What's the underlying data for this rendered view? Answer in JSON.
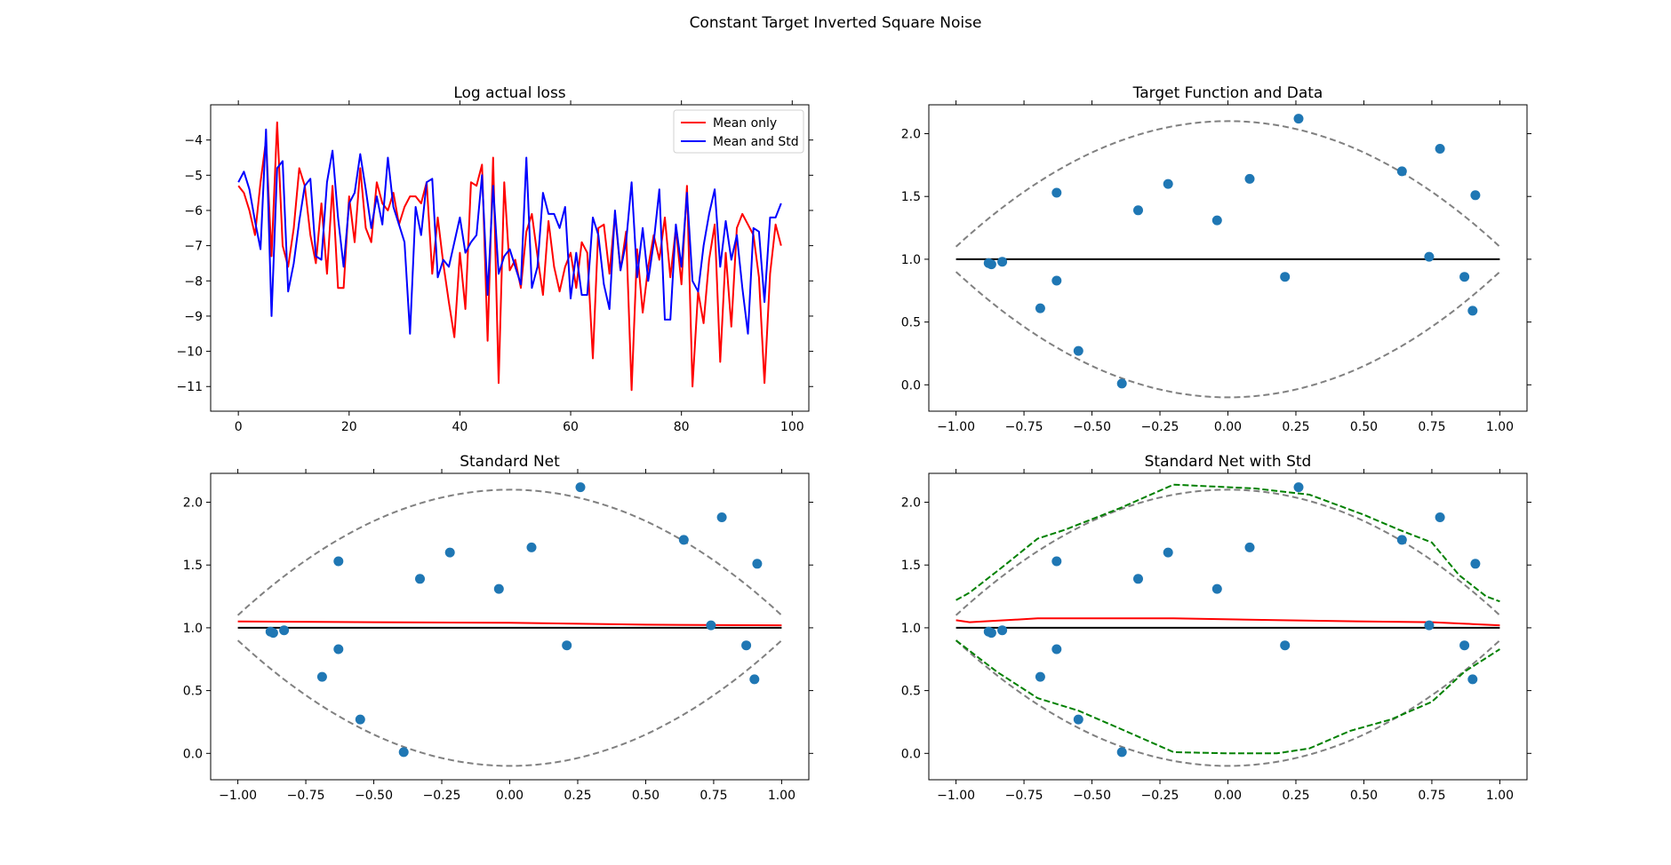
{
  "figure": {
    "suptitle": "Constant Target Inverted Square Noise"
  },
  "colors": {
    "red": "#ff0000",
    "blue": "#0000ff",
    "black": "#000000",
    "gray_dashed": "#808080",
    "green_dashed": "#008000",
    "points": "#1f77b4"
  },
  "chart_data": [
    {
      "id": "loss",
      "type": "line",
      "title": "Log actual loss",
      "xlabel": "",
      "ylabel": "",
      "xlim": [
        -5,
        103
      ],
      "ylim": [
        -11.7,
        -3.0
      ],
      "xticks": [
        0,
        20,
        40,
        60,
        80,
        100
      ],
      "xtick_labels": [
        "0",
        "20",
        "40",
        "60",
        "80",
        "100"
      ],
      "yticks": [
        -4,
        -5,
        -6,
        -7,
        -8,
        -9,
        -10,
        -11
      ],
      "ytick_labels": [
        "−4",
        "−5",
        "−6",
        "−7",
        "−8",
        "−9",
        "−10",
        "−11"
      ],
      "legend": {
        "position": "upper right",
        "entries": [
          "Mean only",
          "Mean and Std"
        ]
      },
      "series": [
        {
          "name": "Mean only",
          "color": "#ff0000",
          "x_start": 0,
          "values": [
            -5.3,
            -5.5,
            -6.0,
            -6.7,
            -5.2,
            -4.0,
            -7.3,
            -3.5,
            -7.0,
            -7.6,
            -6.5,
            -4.8,
            -5.3,
            -6.7,
            -7.5,
            -5.8,
            -7.8,
            -5.3,
            -8.2,
            -8.2,
            -5.6,
            -6.9,
            -4.8,
            -6.5,
            -6.9,
            -5.2,
            -5.8,
            -6.0,
            -5.5,
            -6.4,
            -5.9,
            -5.6,
            -5.6,
            -5.8,
            -5.2,
            -7.8,
            -6.2,
            -7.5,
            -8.6,
            -9.6,
            -7.2,
            -8.8,
            -5.2,
            -5.3,
            -4.7,
            -9.7,
            -4.5,
            -10.9,
            -5.2,
            -7.7,
            -7.4,
            -8.2,
            -6.6,
            -6.1,
            -7.3,
            -8.4,
            -6.3,
            -7.6,
            -8.3,
            -7.6,
            -7.2,
            -8.2,
            -6.9,
            -7.2,
            -10.2,
            -6.5,
            -6.4,
            -7.8,
            -6.1,
            -7.7,
            -6.6,
            -11.1,
            -7.1,
            -8.9,
            -7.6,
            -6.7,
            -7.4,
            -6.2,
            -7.9,
            -6.5,
            -8.1,
            -5.3,
            -11.0,
            -8.3,
            -9.2,
            -7.4,
            -6.4,
            -10.3,
            -7.2,
            -9.3,
            -6.5,
            -6.1,
            -6.4,
            -6.7,
            -7.9,
            -10.9,
            -7.8,
            -6.4,
            -7.0
          ]
        },
        {
          "name": "Mean and Std",
          "color": "#0000ff",
          "x_start": 0,
          "values": [
            -5.2,
            -4.9,
            -5.4,
            -6.3,
            -7.1,
            -3.7,
            -9.0,
            -4.8,
            -4.6,
            -8.3,
            -7.5,
            -6.3,
            -5.3,
            -5.1,
            -7.3,
            -7.4,
            -5.2,
            -4.3,
            -6.2,
            -7.6,
            -5.8,
            -5.5,
            -4.4,
            -5.4,
            -6.5,
            -5.6,
            -6.4,
            -4.5,
            -5.9,
            -6.4,
            -6.9,
            -9.5,
            -5.9,
            -6.7,
            -5.2,
            -5.1,
            -7.9,
            -7.4,
            -7.6,
            -6.9,
            -6.2,
            -7.2,
            -6.9,
            -6.7,
            -5.0,
            -8.4,
            -5.3,
            -7.8,
            -7.3,
            -7.1,
            -7.6,
            -8.1,
            -4.5,
            -8.2,
            -7.6,
            -5.5,
            -6.1,
            -6.1,
            -6.5,
            -5.9,
            -8.5,
            -7.2,
            -8.4,
            -8.4,
            -6.2,
            -6.7,
            -8.1,
            -8.8,
            -6.0,
            -7.7,
            -6.9,
            -5.2,
            -7.9,
            -6.5,
            -8.0,
            -6.9,
            -5.4,
            -9.1,
            -9.1,
            -6.4,
            -7.6,
            -5.5,
            -8.0,
            -8.3,
            -7.0,
            -6.1,
            -5.4,
            -7.6,
            -6.3,
            -7.4,
            -6.7,
            -8.2,
            -9.5,
            -6.5,
            -6.6,
            -8.6,
            -6.2,
            -6.2,
            -5.8
          ]
        }
      ]
    },
    {
      "id": "target",
      "type": "line",
      "title": "Target Function and Data",
      "xlim": [
        -1.1,
        1.1
      ],
      "ylim": [
        -0.21,
        2.23
      ],
      "xticks": [
        -1.0,
        -0.75,
        -0.5,
        -0.25,
        0.0,
        0.25,
        0.5,
        0.75,
        1.0
      ],
      "xtick_labels": [
        "−1.00",
        "−0.75",
        "−0.50",
        "−0.25",
        "0.00",
        "0.25",
        "0.50",
        "0.75",
        "1.00"
      ],
      "yticks": [
        0.0,
        0.5,
        1.0,
        1.5,
        2.0
      ],
      "ytick_labels": [
        "0.0",
        "0.5",
        "1.0",
        "1.5",
        "2.0"
      ],
      "target_line": {
        "x": [
          -1.0,
          1.0
        ],
        "y": [
          1.0,
          1.0
        ],
        "color": "#000000"
      },
      "bounds": {
        "center": 1.0,
        "half_width_at_zero": 1.1,
        "half_width_at_edges": 0.1,
        "color": "#808080",
        "style": "dashed"
      },
      "points": {
        "color": "#1f77b4",
        "x": [
          -0.88,
          -0.87,
          -0.83,
          -0.69,
          -0.63,
          -0.63,
          -0.55,
          -0.39,
          -0.33,
          -0.22,
          -0.04,
          0.08,
          0.21,
          0.26,
          0.64,
          0.74,
          0.78,
          0.87,
          0.9,
          0.91
        ],
        "y": [
          0.97,
          0.96,
          0.98,
          0.61,
          0.83,
          1.53,
          0.27,
          0.01,
          1.39,
          1.6,
          1.31,
          1.64,
          0.86,
          2.12,
          1.7,
          1.02,
          1.88,
          0.86,
          0.59,
          1.51
        ]
      }
    },
    {
      "id": "standard",
      "type": "line",
      "title": "Standard Net",
      "xlim": [
        -1.1,
        1.1
      ],
      "ylim": [
        -0.21,
        2.23
      ],
      "xticks": [
        -1.0,
        -0.75,
        -0.5,
        -0.25,
        0.0,
        0.25,
        0.5,
        0.75,
        1.0
      ],
      "xtick_labels": [
        "−1.00",
        "−0.75",
        "−0.50",
        "−0.25",
        "0.00",
        "0.25",
        "0.50",
        "0.75",
        "1.00"
      ],
      "yticks": [
        0.0,
        0.5,
        1.0,
        1.5,
        2.0
      ],
      "ytick_labels": [
        "0.0",
        "0.5",
        "1.0",
        "1.5",
        "2.0"
      ],
      "target_line": {
        "x": [
          -1.0,
          1.0
        ],
        "y": [
          1.0,
          1.0
        ],
        "color": "#000000"
      },
      "bounds": {
        "center": 1.0,
        "half_width_at_zero": 1.1,
        "half_width_at_edges": 0.1,
        "color": "#808080",
        "style": "dashed"
      },
      "prediction": {
        "color": "#ff0000",
        "x": [
          -1.0,
          -0.5,
          0.0,
          0.5,
          1.0
        ],
        "y": [
          1.05,
          1.045,
          1.04,
          1.025,
          1.02
        ]
      },
      "points": {
        "color": "#1f77b4",
        "x": [
          -0.88,
          -0.87,
          -0.83,
          -0.69,
          -0.63,
          -0.63,
          -0.55,
          -0.39,
          -0.33,
          -0.22,
          -0.04,
          0.08,
          0.21,
          0.26,
          0.64,
          0.74,
          0.78,
          0.87,
          0.9,
          0.91
        ],
        "y": [
          0.97,
          0.96,
          0.98,
          0.61,
          0.83,
          1.53,
          0.27,
          0.01,
          1.39,
          1.6,
          1.31,
          1.64,
          0.86,
          2.12,
          1.7,
          1.02,
          1.88,
          0.86,
          0.59,
          1.51
        ]
      }
    },
    {
      "id": "standard_std",
      "type": "line",
      "title": "Standard Net with Std",
      "xlim": [
        -1.1,
        1.1
      ],
      "ylim": [
        -0.21,
        2.23
      ],
      "xticks": [
        -1.0,
        -0.75,
        -0.5,
        -0.25,
        0.0,
        0.25,
        0.5,
        0.75,
        1.0
      ],
      "xtick_labels": [
        "−1.00",
        "−0.75",
        "−0.50",
        "−0.25",
        "0.00",
        "0.25",
        "0.50",
        "0.75",
        "1.00"
      ],
      "yticks": [
        0.0,
        0.5,
        1.0,
        1.5,
        2.0
      ],
      "ytick_labels": [
        "0.0",
        "0.5",
        "1.0",
        "1.5",
        "2.0"
      ],
      "target_line": {
        "x": [
          -1.0,
          1.0
        ],
        "y": [
          1.0,
          1.0
        ],
        "color": "#000000"
      },
      "bounds": {
        "center": 1.0,
        "half_width_at_zero": 1.1,
        "half_width_at_edges": 0.1,
        "color": "#808080",
        "style": "dashed"
      },
      "prediction": {
        "color": "#ff0000",
        "x": [
          -1.0,
          -0.95,
          -0.9,
          -0.7,
          -0.2,
          0.2,
          0.5,
          0.75,
          0.9,
          1.0
        ],
        "y": [
          1.06,
          1.045,
          1.05,
          1.075,
          1.075,
          1.06,
          1.05,
          1.045,
          1.03,
          1.02
        ]
      },
      "std_upper": {
        "color": "#008000",
        "x": [
          -1.0,
          -0.95,
          -0.82,
          -0.7,
          -0.6,
          -0.4,
          -0.2,
          0.1,
          0.3,
          0.5,
          0.63,
          0.75,
          0.85,
          0.95,
          1.0
        ],
        "y": [
          1.22,
          1.28,
          1.5,
          1.71,
          1.78,
          1.95,
          2.14,
          2.11,
          2.06,
          1.9,
          1.78,
          1.68,
          1.42,
          1.25,
          1.21
        ]
      },
      "std_lower": {
        "color": "#008000",
        "x": [
          -1.0,
          -0.85,
          -0.7,
          -0.55,
          -0.4,
          -0.2,
          0.0,
          0.18,
          0.3,
          0.45,
          0.6,
          0.75,
          0.87,
          0.95,
          1.0
        ],
        "y": [
          0.9,
          0.65,
          0.44,
          0.34,
          0.2,
          0.01,
          0.0,
          0.0,
          0.04,
          0.18,
          0.27,
          0.41,
          0.65,
          0.76,
          0.83
        ]
      },
      "points": {
        "color": "#1f77b4",
        "x": [
          -0.88,
          -0.87,
          -0.83,
          -0.69,
          -0.63,
          -0.63,
          -0.55,
          -0.39,
          -0.33,
          -0.22,
          -0.04,
          0.08,
          0.21,
          0.26,
          0.64,
          0.74,
          0.78,
          0.87,
          0.9,
          0.91
        ],
        "y": [
          0.97,
          0.96,
          0.98,
          0.61,
          0.83,
          1.53,
          0.27,
          0.01,
          1.39,
          1.6,
          1.31,
          1.64,
          0.86,
          2.12,
          1.7,
          1.02,
          1.88,
          0.86,
          0.59,
          1.51
        ]
      }
    }
  ]
}
